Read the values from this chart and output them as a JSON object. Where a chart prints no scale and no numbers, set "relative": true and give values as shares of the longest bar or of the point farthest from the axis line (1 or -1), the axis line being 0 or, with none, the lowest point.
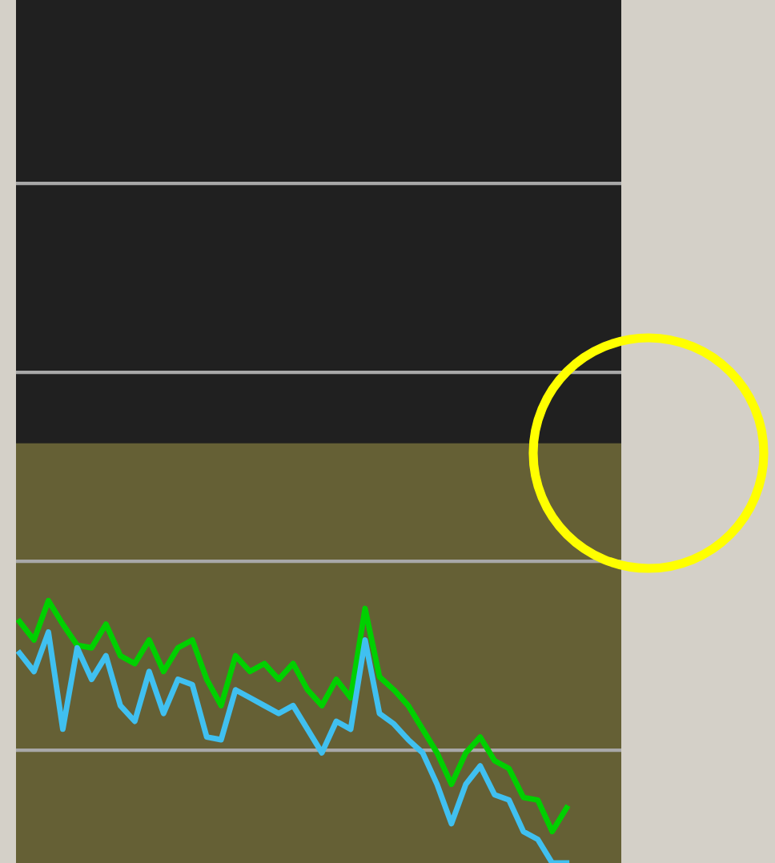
{
  "chart_data": {
    "type": "line",
    "relative": true,
    "marker": "none",
    "line_style": "solid",
    "categories": [
      null,
      null,
      null,
      null,
      null,
      null,
      null,
      null,
      null,
      null,
      null,
      null,
      null,
      null,
      null,
      null,
      null,
      null,
      null,
      null,
      null,
      null,
      null,
      null,
      null,
      null,
      null,
      null,
      null,
      null,
      null,
      null,
      null,
      null,
      null,
      null,
      null,
      null,
      null
    ],
    "series": [
      {
        "color": "#00d000",
        "values": [
          0.92,
          0.85,
          1,
          0.91,
          0.83,
          0.82,
          0.91,
          0.79,
          0.76,
          0.85,
          0.73,
          0.82,
          0.85,
          0.7,
          0.6,
          0.79,
          0.73,
          0.76,
          0.7,
          0.76,
          0.66,
          0.6,
          0.7,
          0.63,
          0.97,
          0.71,
          0.66,
          0.6,
          0.51,
          0.42,
          0.3,
          0.42,
          0.48,
          0.39,
          0.36,
          0.25,
          0.24,
          0.12,
          0.21
        ]
      },
      {
        "color": "#40c0f0",
        "values": [
          0.8,
          0.73,
          0.88,
          0.51,
          0.82,
          0.7,
          0.79,
          0.6,
          0.54,
          0.73,
          0.57,
          0.7,
          0.68,
          0.48,
          0.47,
          0.66,
          0.63,
          0.6,
          0.57,
          0.6,
          0.51,
          0.42,
          0.54,
          0.51,
          0.85,
          0.57,
          0.53,
          0.47,
          0.42,
          0.3,
          0.15,
          0.3,
          0.37,
          0.26,
          0.24,
          0.12,
          0.09,
          0,
          0
        ]
      }
    ],
    "bands": [
      {
        "axis": "y",
        "from": 0,
        "to": 1.6,
        "color": "#656035"
      }
    ],
    "ref_lines": [
      {
        "axis": "y",
        "value": 2.59,
        "color": "#a8a8a8"
      },
      {
        "axis": "y",
        "value": 1.87,
        "color": "#a8a8a8"
      },
      {
        "axis": "y",
        "value": 1.15,
        "color": "#a8a8a8"
      },
      {
        "axis": "y",
        "value": 0.43,
        "color": "#a8a8a8"
      }
    ]
  }
}
